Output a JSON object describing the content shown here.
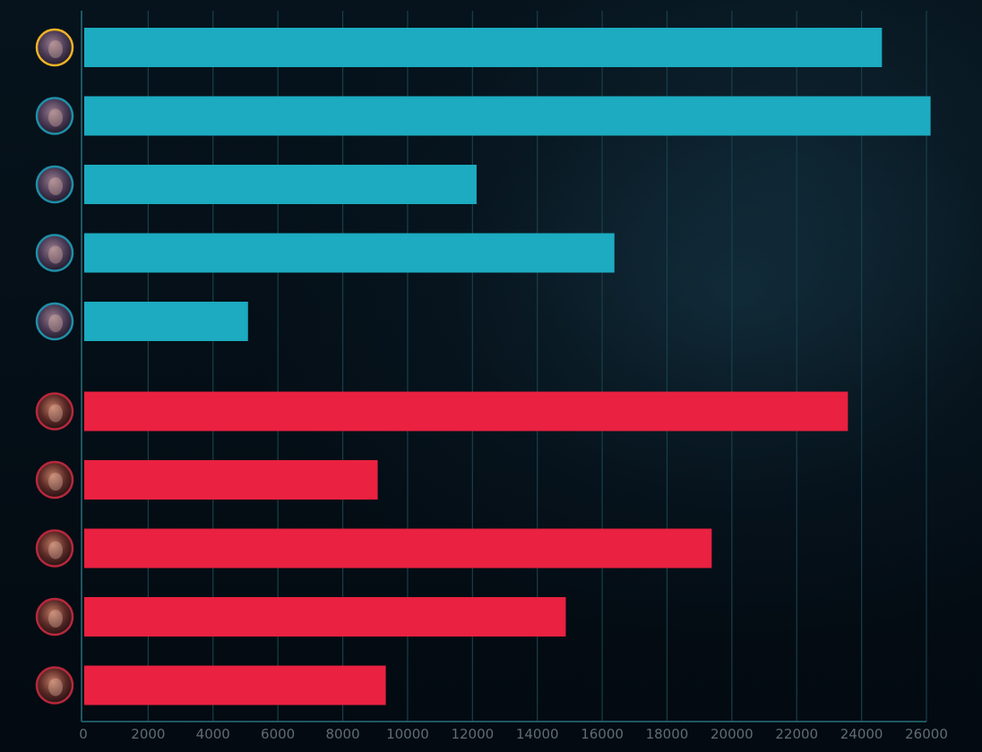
{
  "chart_data": {
    "type": "bar",
    "orientation": "horizontal",
    "title": "",
    "xlabel": "",
    "ylabel": "",
    "xlim": [
      0,
      26000
    ],
    "x_ticks": [
      0,
      2000,
      4000,
      6000,
      8000,
      10000,
      12000,
      14000,
      16000,
      18000,
      20000,
      22000,
      24000,
      26000
    ],
    "grid": "vertical",
    "legend": "none",
    "colors": {
      "team_blue": "#1cabc0",
      "team_red": "#ea2140",
      "highlight_ring": "#f0b323",
      "grid": "#17404a",
      "axis": "#1e5762",
      "tick_text": "#5f6c74"
    },
    "teams": [
      {
        "team": "blue",
        "bars": [
          {
            "value": 24600,
            "avatar": "champion-portrait-icon",
            "highlighted": true
          },
          {
            "value": 26100,
            "avatar": "champion-portrait-icon",
            "highlighted": false
          },
          {
            "value": 12100,
            "avatar": "champion-portrait-icon",
            "highlighted": false
          },
          {
            "value": 16350,
            "avatar": "champion-portrait-icon",
            "highlighted": false
          },
          {
            "value": 5050,
            "avatar": "champion-portrait-icon",
            "highlighted": false
          }
        ]
      },
      {
        "team": "red",
        "bars": [
          {
            "value": 23550,
            "avatar": "champion-portrait-icon",
            "highlighted": false
          },
          {
            "value": 9050,
            "avatar": "champion-portrait-icon",
            "highlighted": false
          },
          {
            "value": 19350,
            "avatar": "champion-portrait-icon",
            "highlighted": false
          },
          {
            "value": 14850,
            "avatar": "champion-portrait-icon",
            "highlighted": false
          },
          {
            "value": 9300,
            "avatar": "champion-portrait-icon",
            "highlighted": false
          }
        ]
      }
    ]
  }
}
